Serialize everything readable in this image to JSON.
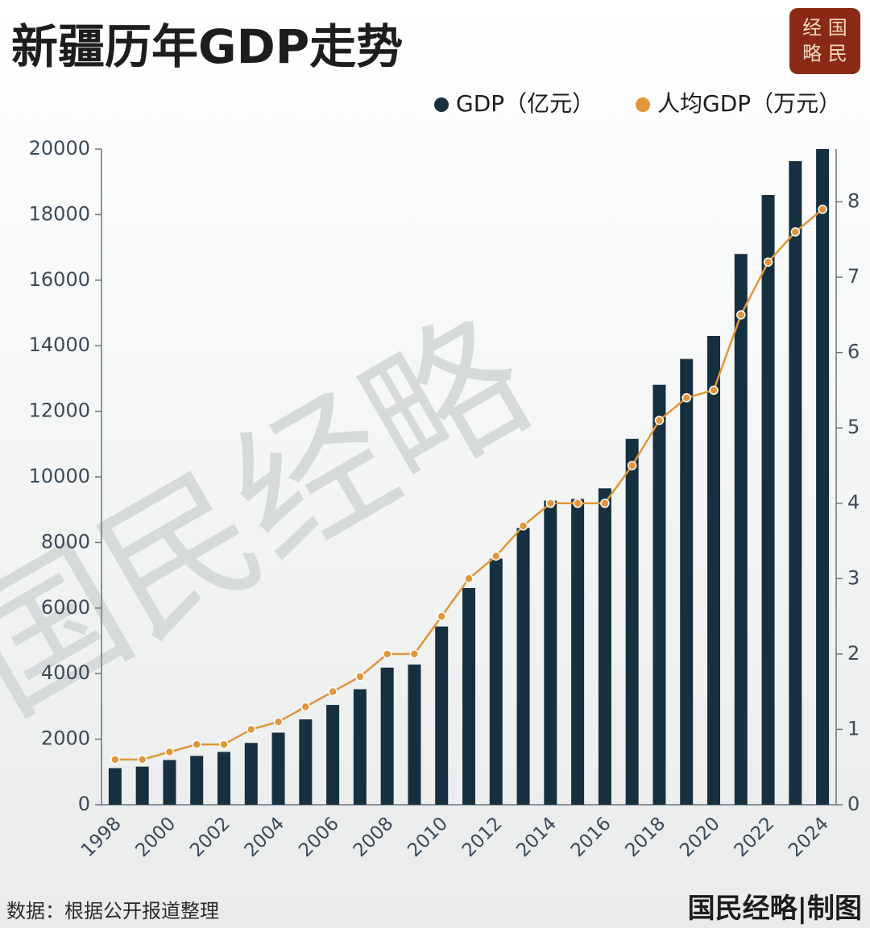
{
  "chart_data": {
    "type": "bar_line",
    "title": "新疆历年GDP走势",
    "logo": [
      "经 国",
      "略 民"
    ],
    "watermark": "国民经略",
    "source": "数据：根据公开报道整理",
    "credit": "国民经略|制图",
    "categories": [
      "1998",
      null,
      "2000",
      null,
      "2002",
      null,
      "2004",
      null,
      "2006",
      null,
      "2008",
      null,
      "2010",
      null,
      "2012",
      null,
      "2014",
      null,
      "2016",
      null,
      "2018",
      null,
      "2020",
      null,
      "2022",
      null,
      "2024"
    ],
    "series": [
      {
        "name": "GDP（亿元）",
        "color": "#17303f",
        "type": "bar",
        "values": [
          1117,
          1163,
          1364,
          1491,
          1612,
          1886,
          2200,
          2604,
          3045,
          3523,
          4183,
          4277,
          5437,
          6610,
          7505,
          8443,
          9273,
          9325,
          9650,
          11160,
          12809,
          13597,
          14300,
          16800,
          18600,
          19630,
          20000
        ]
      },
      {
        "name": "人均GDP（万元）",
        "color": "#e0963a",
        "type": "line",
        "axis": "y2",
        "values": [
          0.6,
          0.6,
          0.7,
          0.8,
          0.8,
          1.0,
          1.1,
          1.3,
          1.5,
          1.7,
          2.0,
          2.0,
          2.5,
          3.0,
          3.3,
          3.7,
          4.0,
          4.0,
          4.0,
          4.5,
          5.1,
          5.4,
          5.5,
          6.5,
          7.2,
          7.6,
          7.9
        ]
      }
    ],
    "ylim": [
      0,
      20000
    ],
    "yticks": [
      0,
      2000,
      4000,
      6000,
      8000,
      10000,
      12000,
      14000,
      16000,
      18000,
      20000
    ],
    "y2lim": [
      0,
      8.7
    ],
    "y2ticks": [
      0,
      1,
      2,
      3,
      4,
      5,
      6,
      7,
      8
    ],
    "legend": "top-right"
  }
}
